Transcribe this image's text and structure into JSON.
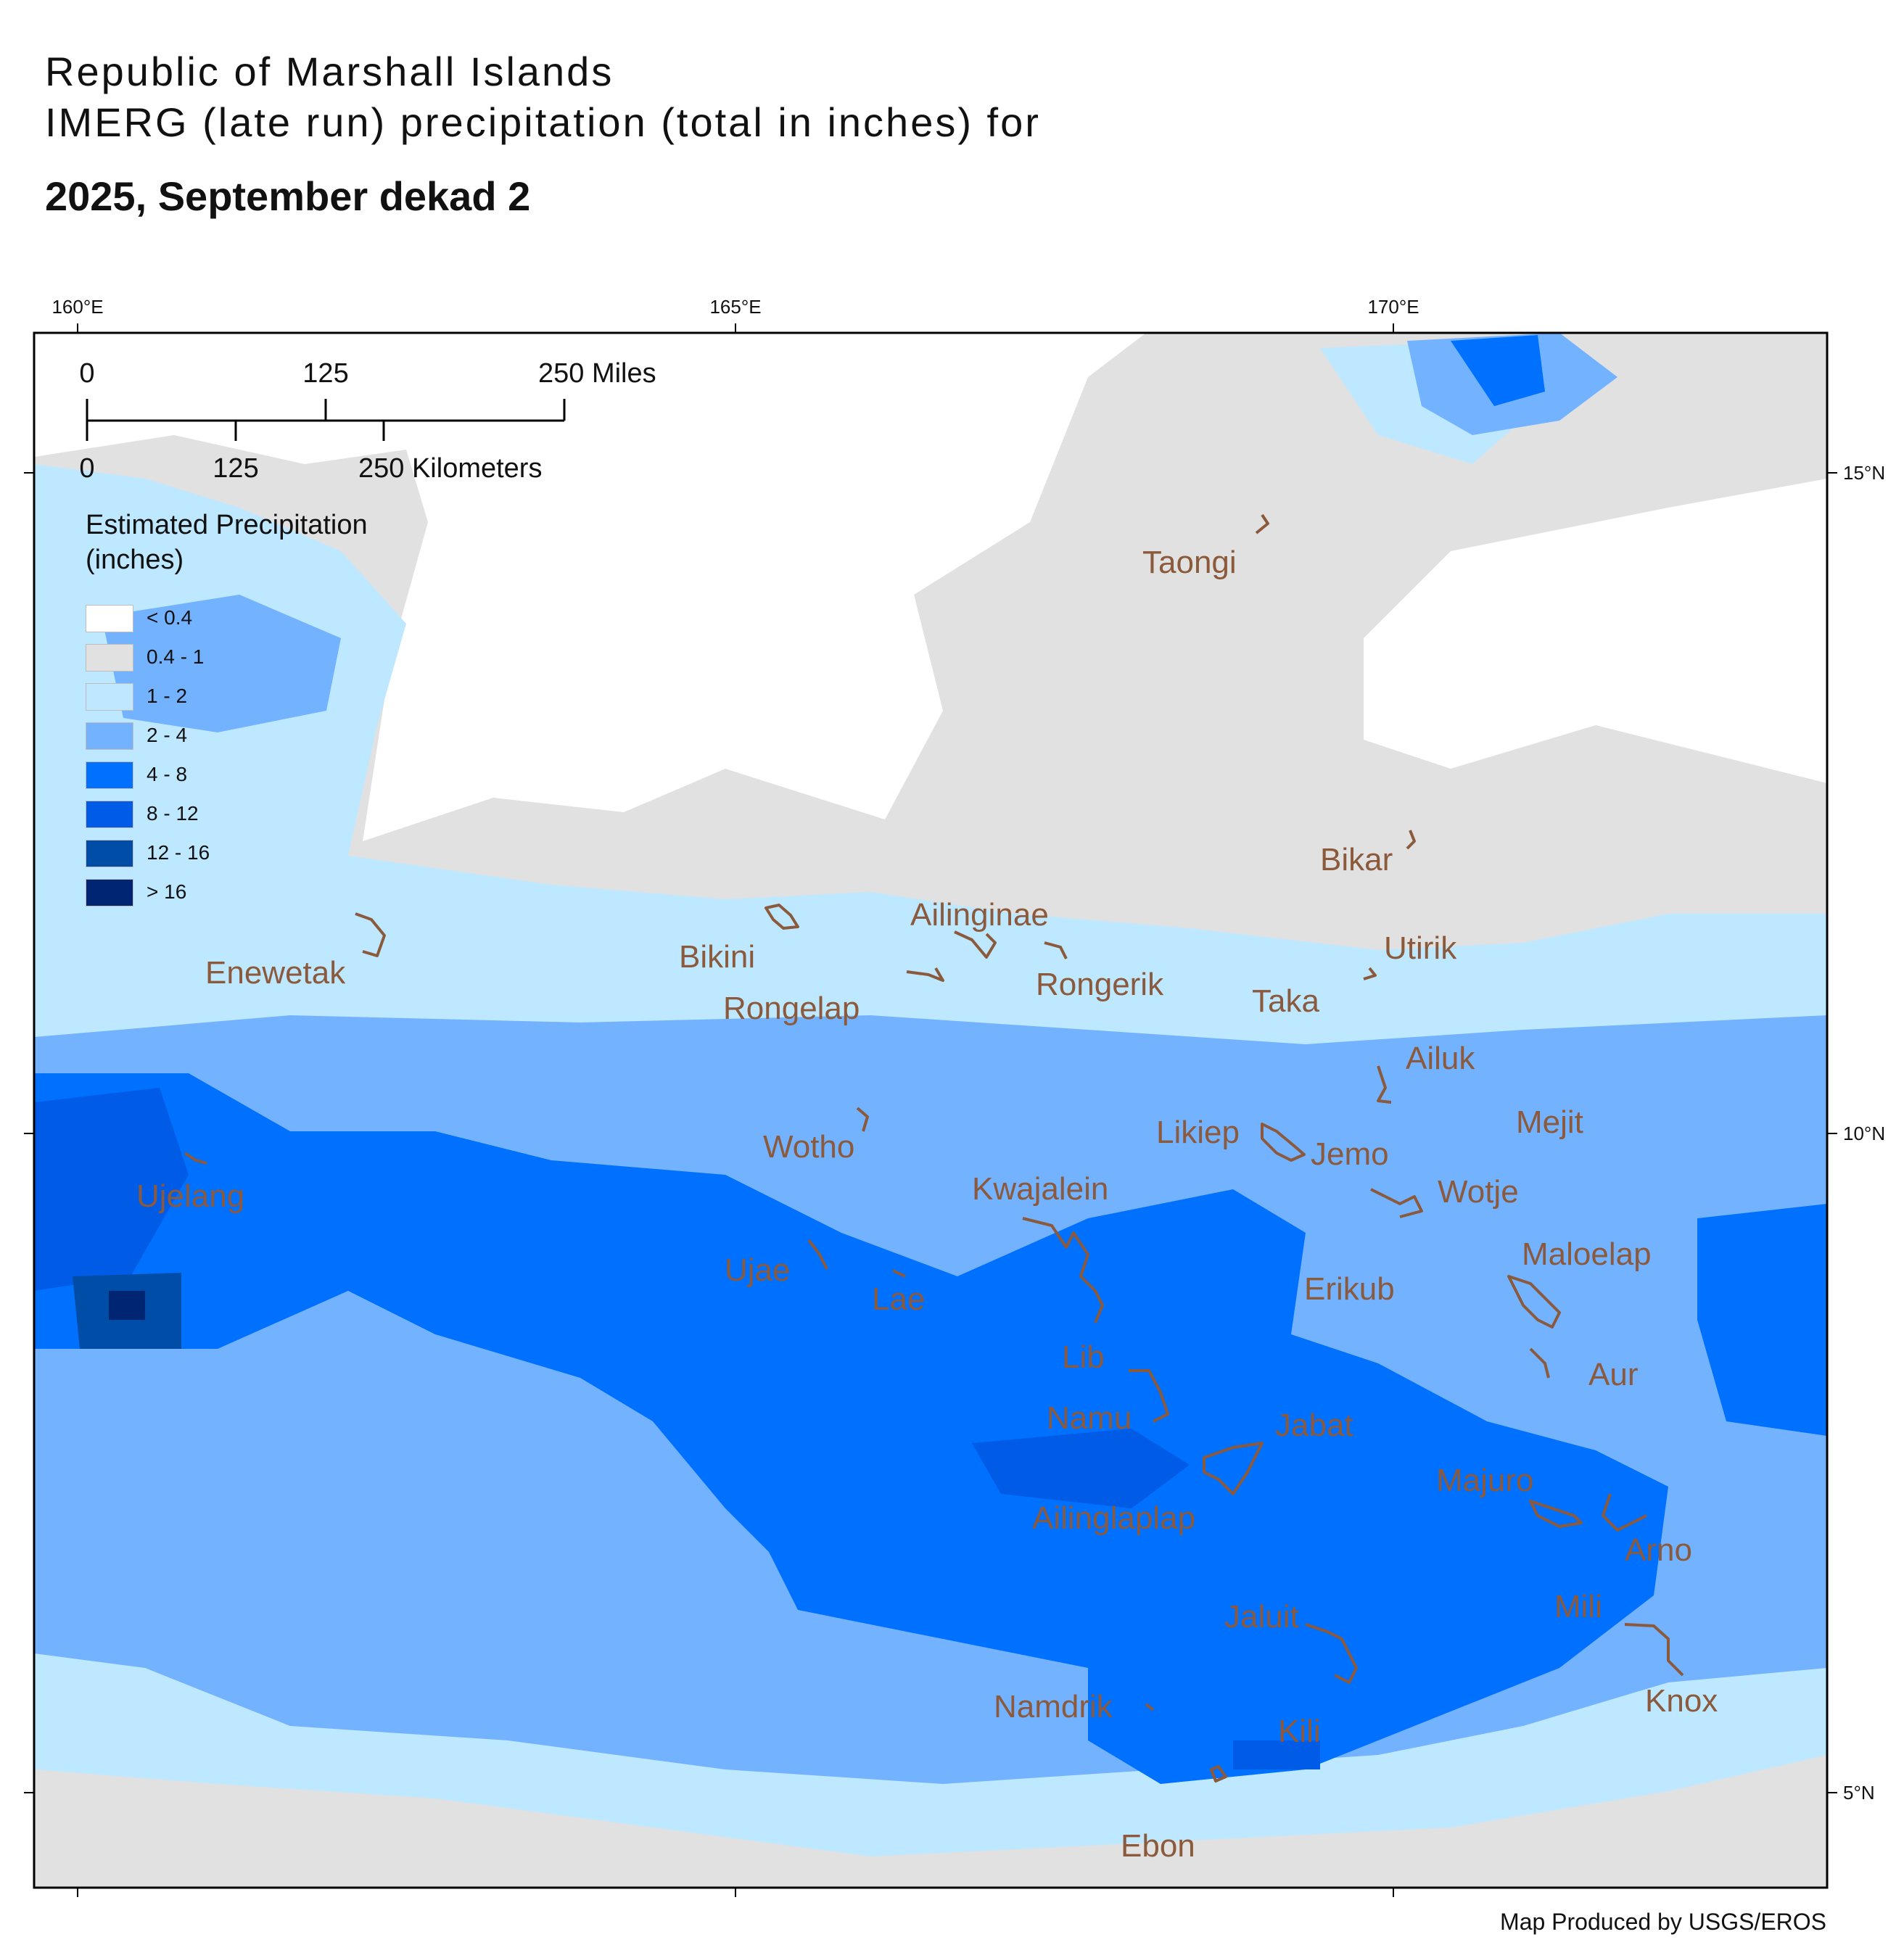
{
  "title": {
    "line1": "Republic of Marshall Islands",
    "line2": "IMERG (late run) precipitation (total in inches) for",
    "line3": "2025, September dekad 2"
  },
  "graticule": {
    "longitudes": [
      "160°E",
      "165°E",
      "170°E"
    ],
    "latitudes": [
      "15°N",
      "10°N",
      "5°N"
    ]
  },
  "scale_bar": {
    "miles": [
      "0",
      "125",
      "250 Miles"
    ],
    "kilometers": [
      "0",
      "125",
      "250 Kilometers"
    ]
  },
  "legend": {
    "title_line1": "Estimated Precipitation",
    "title_line2": "(inches)",
    "classes": [
      {
        "label": "< 0.4",
        "color": "#ffffff"
      },
      {
        "label": "0.4 - 1",
        "color": "#e1e1e1"
      },
      {
        "label": "1 - 2",
        "color": "#bee8ff"
      },
      {
        "label": "2 - 4",
        "color": "#73b2ff"
      },
      {
        "label": "4 - 8",
        "color": "#0070ff"
      },
      {
        "label": "8 - 12",
        "color": "#005ce6"
      },
      {
        "label": "12 - 16",
        "color": "#004da8"
      },
      {
        "label": "> 16",
        "color": "#002673"
      }
    ]
  },
  "atoll_label_color": "#8b5a3c",
  "atolls": [
    "Taongi",
    "Bikar",
    "Ailinginae",
    "Utirik",
    "Enewetak",
    "Bikini",
    "Rongerik",
    "Taka",
    "Rongelap",
    "Ailuk",
    "Mejit",
    "Likiep",
    "Jemo",
    "Wotho",
    "Kwajalein",
    "Wotje",
    "Ujelang",
    "Maloelap",
    "Ujae",
    "Erikub",
    "Lae",
    "Aur",
    "Lib",
    "Namu",
    "Jabat",
    "Majuro",
    "Ailinglaplap",
    "Arno",
    "Mili",
    "Jaluit",
    "Knox",
    "Namdrik",
    "Kili",
    "Ebon"
  ],
  "credit": "Map Produced by USGS/EROS"
}
